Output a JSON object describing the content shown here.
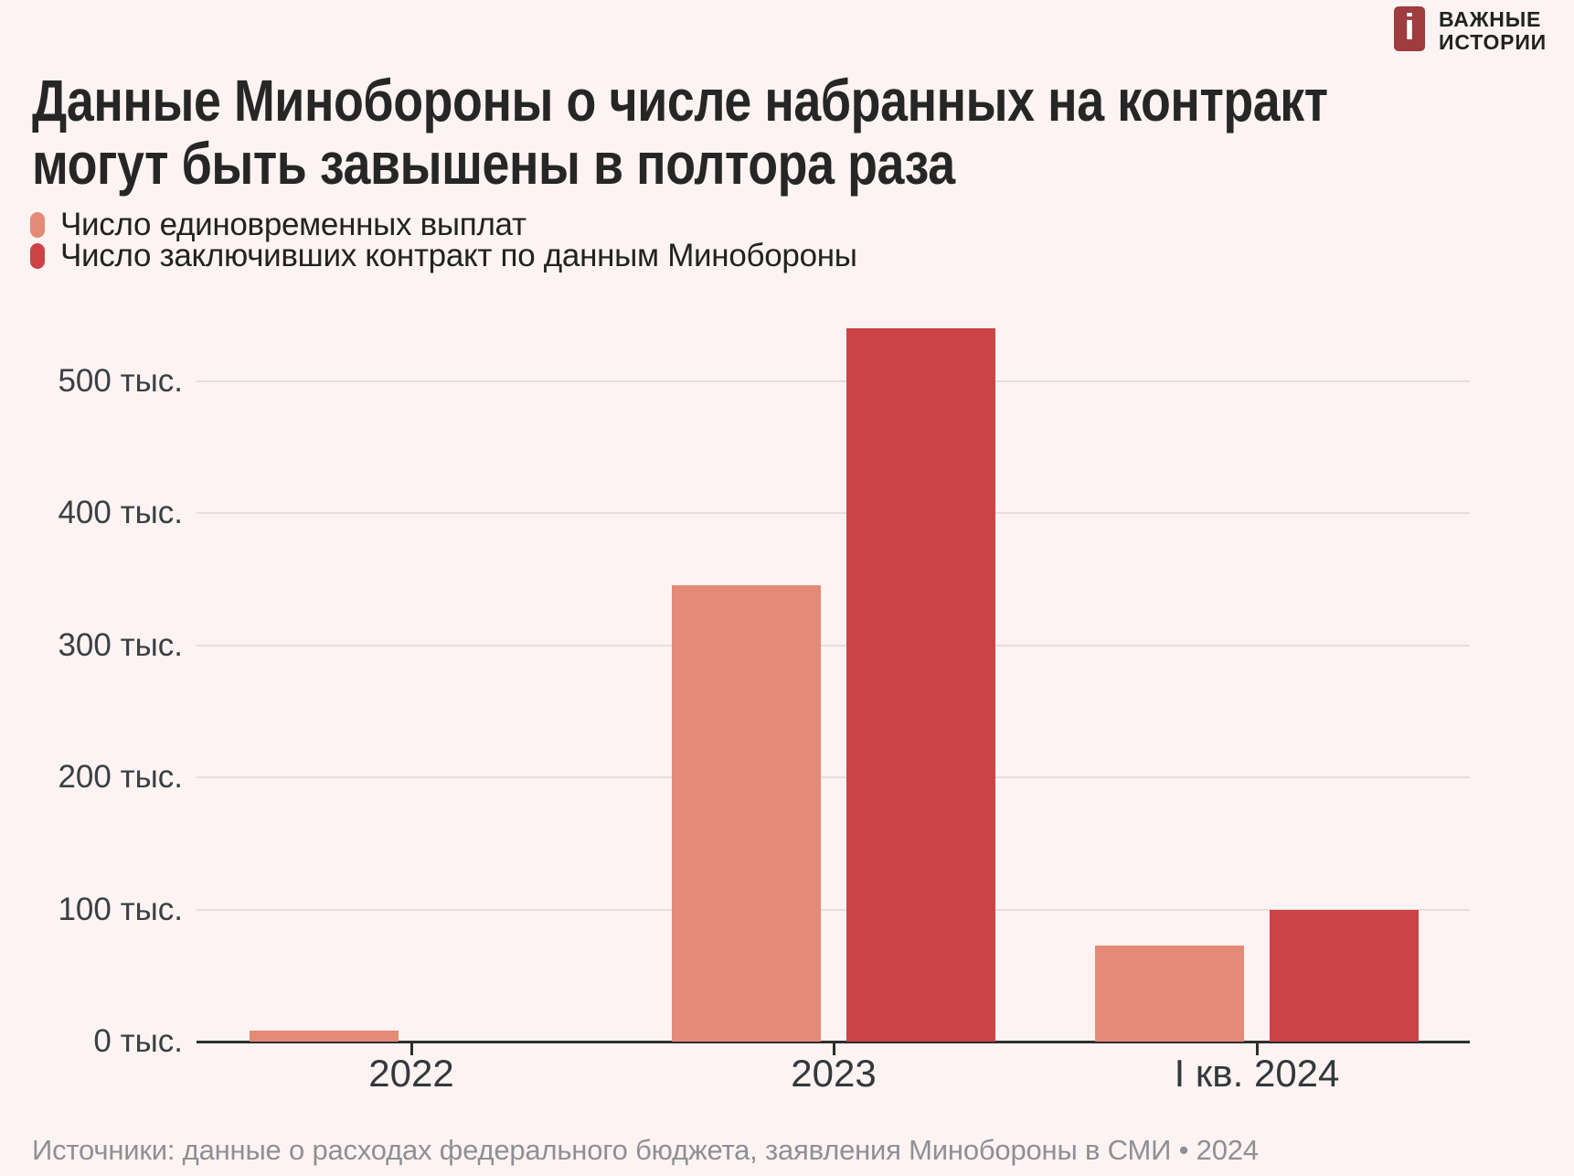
{
  "logo": {
    "icon_letter": "i",
    "icon_color": "#9e3c40",
    "name_line1": "ВАЖНЫЕ",
    "name_line2": "ИСТОРИИ"
  },
  "title": {
    "line1": "Данные Минобороны о числе набранных на контракт",
    "line2": "могут быть завышены в полтора раза"
  },
  "legend": {
    "items": [
      {
        "label": "Число единовременных выплат",
        "color": "#e48a77"
      },
      {
        "label": "Число заключивших контракт по данным Минобороны",
        "color": "#cb4346"
      }
    ]
  },
  "chart_data": {
    "type": "bar",
    "title": "Данные Минобороны о числе набранных на контракт могут быть завышены в полтора раза",
    "categories": [
      "2022",
      "2023",
      "I кв. 2024"
    ],
    "series": [
      {
        "name": "Число единовременных выплат",
        "color": "#e48a77",
        "values": [
          8,
          345,
          73
        ]
      },
      {
        "name": "Число заключивших контракт по данным Минобороны",
        "color": "#cb4346",
        "values": [
          null,
          540,
          100
        ]
      }
    ],
    "unit": "тыс.",
    "yticks": [
      0,
      100,
      200,
      300,
      400,
      500
    ],
    "ytick_suffix": " тыс.",
    "ylim": [
      0,
      560
    ],
    "grid": true,
    "legend_position": "top-left"
  },
  "footer": {
    "text": "Источники: данные о расходах федерального бюджета, заявления Минобороны в СМИ • 2024"
  }
}
